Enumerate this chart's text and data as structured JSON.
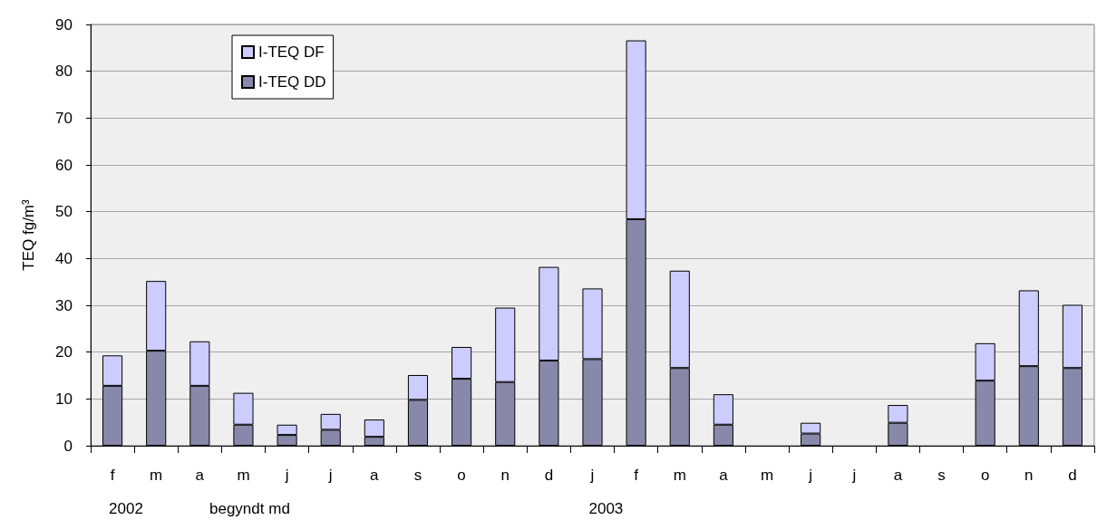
{
  "chart_data": {
    "type": "bar",
    "ylabel": "TEQ fg/m³",
    "xlabel": "begyndt md",
    "annotations": [
      "2002",
      "2003"
    ],
    "categories": [
      "f",
      "m",
      "a",
      "m",
      "j",
      "j",
      "a",
      "s",
      "o",
      "n",
      "d",
      "j",
      "f",
      "m",
      "a",
      "m",
      "j",
      "j",
      "a",
      "s",
      "o",
      "n",
      "d"
    ],
    "stacked": true,
    "series": [
      {
        "name": "I-TEQ DD",
        "color": "#8888aa",
        "values": [
          12.8,
          20.3,
          12.8,
          4.5,
          2.3,
          3.4,
          1.9,
          9.8,
          14.3,
          13.6,
          18.2,
          18.5,
          48.4,
          16.6,
          4.5,
          null,
          2.6,
          null,
          4.9,
          null,
          13.9,
          17.0,
          16.6
        ]
      },
      {
        "name": "I-TEQ DF",
        "color": "#ccccff",
        "values": [
          6.5,
          14.9,
          9.5,
          6.8,
          2.2,
          3.4,
          3.7,
          5.3,
          6.8,
          15.9,
          20.0,
          15.1,
          38.2,
          20.8,
          6.5,
          null,
          2.3,
          null,
          3.8,
          null,
          8.0,
          16.2,
          13.5
        ]
      }
    ],
    "ylim": [
      0,
      90
    ],
    "yticks": [
      0,
      10,
      20,
      30,
      40,
      50,
      60,
      70,
      80,
      90
    ],
    "grid": "y",
    "legend": "top left"
  }
}
